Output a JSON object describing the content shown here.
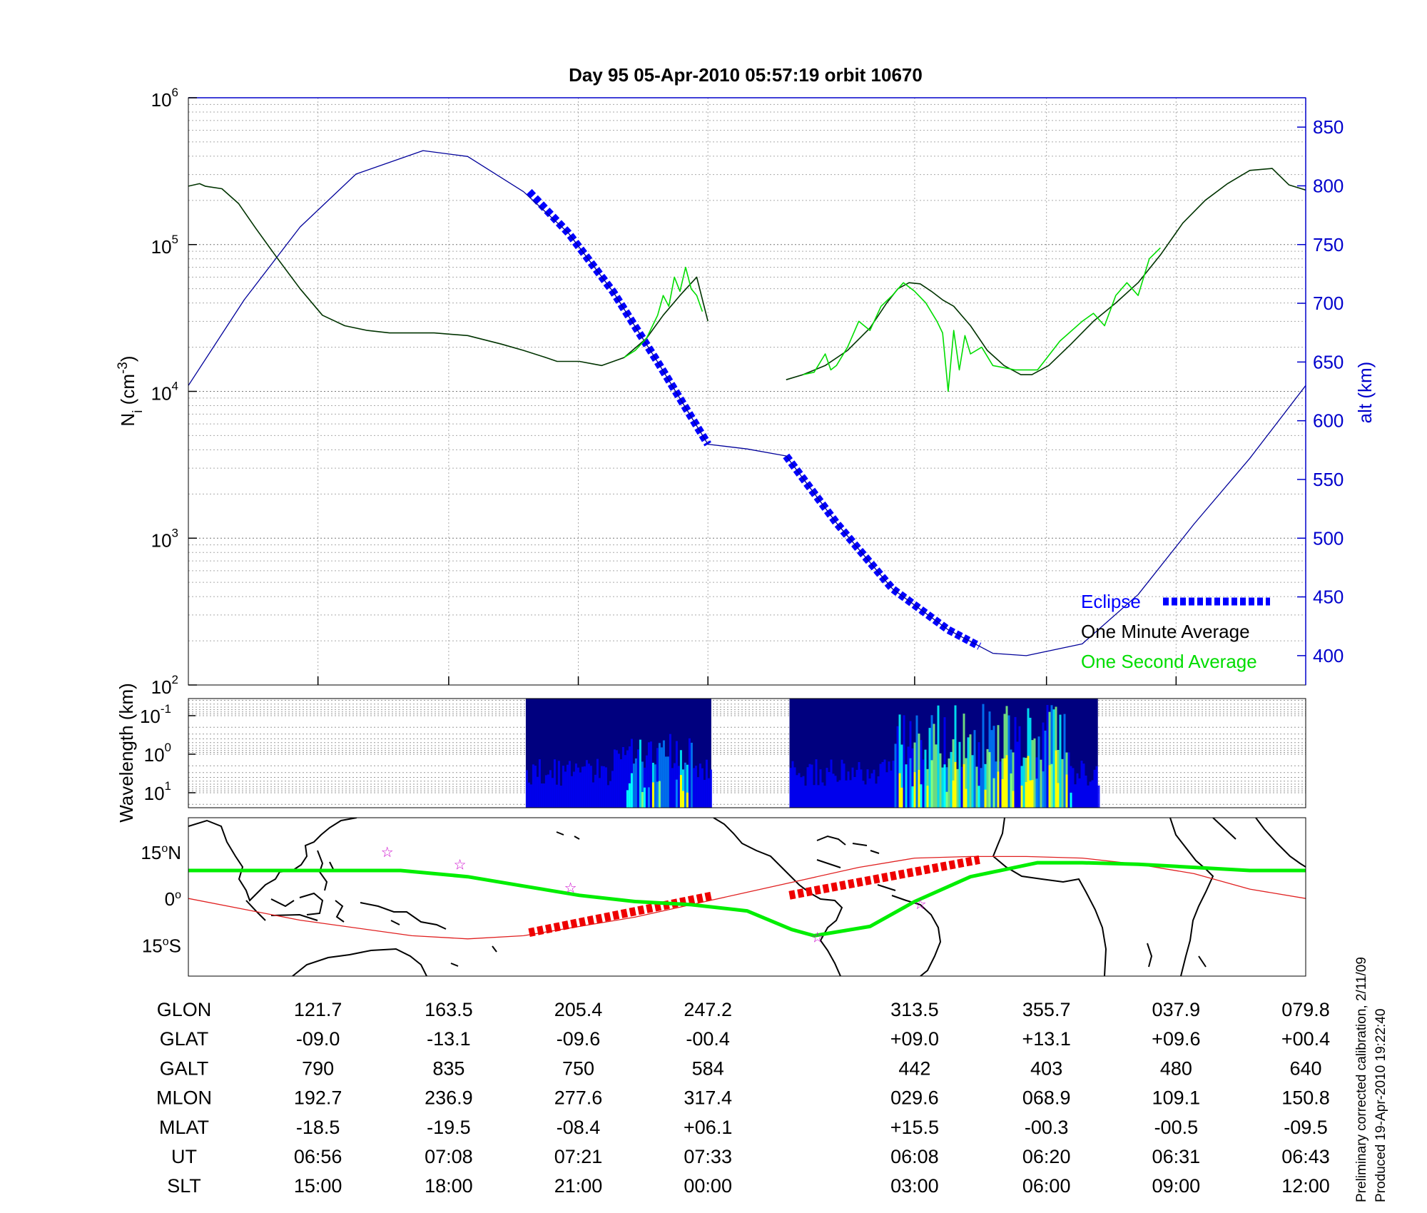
{
  "figure": {
    "title": "Day 95  05-Apr-2010 05:57:19   orbit 10670",
    "note_line1": "Preliminary corrected calibration, 2/11/09",
    "note_line2": "Produced 19-Apr-2010 19:22:40"
  },
  "chart_data": [
    {
      "id": "density_panel",
      "type": "line",
      "ylabel": "Ni (cm-3)",
      "ylabel_parts": {
        "N": "N",
        "sub": "i",
        "unit_open": " (cm",
        "sup": "-3",
        "unit_close": ")"
      },
      "ylabel_right": "alt (km)",
      "y_scale": "log",
      "ylim": [
        100,
        1000000
      ],
      "y_ticks": [
        {
          "main": "10",
          "exp": "2",
          "value": 100
        },
        {
          "main": "10",
          "exp": "3",
          "value": 1000
        },
        {
          "main": "10",
          "exp": "4",
          "value": 10000
        },
        {
          "main": "10",
          "exp": "5",
          "value": 100000
        },
        {
          "main": "10",
          "exp": "6",
          "value": 1000000
        }
      ],
      "y2lim": [
        375,
        875
      ],
      "y2_ticks": [
        "400",
        "450",
        "500",
        "550",
        "600",
        "650",
        "700",
        "750",
        "800",
        "850"
      ],
      "grid": true,
      "x_range": [
        0,
        100
      ],
      "x_tick_positions": [
        11.6,
        23.3,
        34.9,
        46.5,
        65.0,
        76.8,
        88.4
      ],
      "legend": {
        "placement": "bottom-right",
        "entries": [
          {
            "label": "Eclipse",
            "color": "#0000ff",
            "style": "thick-dash"
          },
          {
            "label": "One Minute Average",
            "color": "#000000",
            "style": "none"
          },
          {
            "label": "One Second Average",
            "color": "#00dd00",
            "style": "none"
          }
        ]
      },
      "series": [
        {
          "name": "Eclipse",
          "color": "#0000ff",
          "axis": "right",
          "style": "thick-dash",
          "segments": [
            {
              "x": [
                30.5,
                34,
                38,
                42,
                46.5
              ],
              "y": [
                795,
                760,
                710,
                650,
                580
              ]
            },
            {
              "x": [
                53.5,
                58,
                63,
                68,
                70.8
              ],
              "y": [
                570,
                513,
                457,
                422,
                408
              ]
            }
          ]
        },
        {
          "name": "alt",
          "color": "#00009a",
          "axis": "right",
          "style": "thin",
          "points": {
            "x": [
              0,
              5,
              10,
              15,
              21,
              25,
              30,
              34,
              38,
              42,
              46.5,
              50,
              53.5,
              58,
              63,
              68,
              72,
              75,
              80,
              85,
              90,
              95,
              100
            ],
            "y": [
              630,
              703,
              765,
              810,
              830,
              825,
              795,
              760,
              710,
              650,
              580,
              576,
              570,
              513,
              457,
              422,
              402,
              400,
              410,
              452,
              512,
              568,
              630
            ]
          }
        },
        {
          "name": "One Minute Average",
          "color": "#003300",
          "axis": "left",
          "style": "thin",
          "segments": [
            {
              "x": [
                0,
                1,
                1.5,
                3,
                4.5,
                6,
                8,
                10,
                12,
                14,
                16,
                18,
                20,
                22,
                25,
                28,
                30,
                32,
                33,
                35,
                37,
                39,
                41,
                42.5,
                44,
                45.5,
                46.5
              ],
              "y": [
                250000,
                260000,
                250000,
                240000,
                190000,
                130000,
                80000,
                50000,
                33000,
                28000,
                26000,
                25000,
                25000,
                25000,
                24000,
                21000,
                19000,
                17000,
                16000,
                16000,
                15000,
                17000,
                23000,
                33000,
                45000,
                60000,
                30000
              ]
            },
            {
              "x": [
                53.5,
                55,
                57,
                59,
                61,
                62.5,
                63.5,
                64.5,
                65.5,
                66.5,
                67.5,
                68.5,
                70,
                71.5,
                73,
                74.5,
                75.5,
                77,
                79,
                81,
                83,
                85,
                87,
                89,
                91,
                93,
                95,
                97,
                98.5,
                100
              ],
              "y": [
                12000,
                13000,
                15000,
                19000,
                27000,
                40000,
                50000,
                55000,
                54000,
                48000,
                42000,
                38000,
                28000,
                19000,
                15000,
                13000,
                13000,
                15000,
                21000,
                30000,
                40000,
                55000,
                85000,
                140000,
                200000,
                260000,
                320000,
                330000,
                255000,
                235000
              ]
            }
          ]
        },
        {
          "name": "One Second Average",
          "color": "#00dd00",
          "axis": "left",
          "style": "thin",
          "segments": [
            {
              "x": [
                39,
                40,
                41,
                42,
                42.5,
                43,
                43.5,
                44,
                44.5,
                45,
                45.5,
                46
              ],
              "y": [
                17000,
                19000,
                23000,
                33000,
                45000,
                38000,
                60000,
                48000,
                70000,
                50000,
                45000,
                35000
              ]
            },
            {
              "x": [
                55,
                56,
                57,
                57.5,
                58,
                59,
                60,
                61,
                62,
                63,
                64,
                65,
                66,
                67,
                67.5,
                68,
                68.5,
                69,
                69.5,
                70,
                71,
                72,
                74,
                76,
                78,
                80,
                81,
                82,
                83,
                84,
                85,
                86,
                87
              ],
              "y": [
                13000,
                13500,
                18000,
                14000,
                15000,
                20000,
                30000,
                26000,
                38000,
                45000,
                55000,
                48000,
                40000,
                30000,
                25000,
                10000,
                26000,
                14000,
                24000,
                18000,
                20000,
                15000,
                14000,
                14000,
                22000,
                30000,
                34000,
                28000,
                45000,
                55000,
                45000,
                80000,
                95000
              ]
            }
          ]
        }
      ]
    },
    {
      "id": "spectrogram_panel",
      "type": "heatmap",
      "ylabel": "Wavelength (km)",
      "y_ticks": [
        {
          "main": "10",
          "exp": "-1"
        },
        {
          "main": "10",
          "exp": "0"
        },
        {
          "main": "10",
          "exp": "1"
        }
      ],
      "grid": true,
      "x_range": [
        0,
        100
      ],
      "data_blocks": [
        {
          "x": [
            30.2,
            46.8
          ],
          "active_x": [
            38,
            45
          ],
          "peak_intensity": 0.55
        },
        {
          "x": [
            53.8,
            81.4
          ],
          "active_x": [
            63,
            79
          ],
          "peak_intensity": 1.0
        }
      ],
      "colormap": [
        "#00007f",
        "#0000ff",
        "#0080ff",
        "#00ffff",
        "#80ff80",
        "#ffff00"
      ]
    },
    {
      "id": "map_panel",
      "type": "line",
      "y_ticks": [
        {
          "deg": "15",
          "hemi": "N",
          "value": 15
        },
        {
          "deg": "0",
          "hemi": "",
          "value": 0
        },
        {
          "deg": "15",
          "hemi": "S",
          "value": -15
        }
      ],
      "ylim": [
        -25,
        26
      ],
      "x_range": [
        0,
        100
      ],
      "series": [
        {
          "name": "magnetic equator",
          "color": "#e02020",
          "x": [
            0,
            10,
            20,
            25,
            30,
            35,
            40,
            45,
            50,
            55,
            60,
            65,
            70,
            75,
            80,
            85,
            90,
            95,
            100
          ],
          "y": [
            0,
            -7,
            -12,
            -13,
            -12,
            -9,
            -6,
            -2,
            2,
            6,
            10,
            13,
            13.5,
            13.5,
            13,
            11,
            8,
            3,
            0
          ]
        },
        {
          "name": "Eclipse",
          "color": "#ee0000",
          "style": "thick-dash",
          "segments": [
            {
              "x": [
                30.5,
                46.8
              ],
              "y": [
                -11,
                0.8
              ]
            },
            {
              "x": [
                53.8,
                70.8
              ],
              "y": [
                1,
                12.5
              ]
            }
          ]
        },
        {
          "name": "ground track",
          "color": "#00ee00",
          "x": [
            0,
            10,
            19,
            25,
            30,
            35,
            40,
            45,
            50,
            54,
            56,
            61,
            65,
            70,
            76,
            80,
            85,
            90,
            95,
            100
          ],
          "y": [
            9,
            9,
            9,
            7,
            4,
            1,
            -1,
            -2,
            -4,
            -10,
            -12,
            -9,
            -1,
            7,
            11.5,
            11.5,
            11,
            10,
            9,
            9
          ]
        }
      ],
      "stars_xy": [
        [
          17.8,
          15
        ],
        [
          24.3,
          11
        ],
        [
          34.2,
          3.5
        ],
        [
          56.3,
          -12.5
        ],
        [
          65.5,
          -1.8
        ]
      ]
    }
  ],
  "orbit_table": {
    "columns_x": [
      11.6,
      23.3,
      34.9,
      46.5,
      65.0,
      76.8,
      88.4,
      100.0
    ],
    "rows": [
      {
        "label": "GLON",
        "values": [
          "121.7",
          "163.5",
          "205.4",
          "247.2",
          "313.5",
          "355.7",
          "037.9",
          "079.8"
        ]
      },
      {
        "label": "GLAT",
        "values": [
          "-09.0",
          "-13.1",
          "-09.6",
          "-00.4",
          "+09.0",
          "+13.1",
          "+09.6",
          "+00.4"
        ]
      },
      {
        "label": "GALT",
        "values": [
          "790",
          "835",
          "750",
          "584",
          "442",
          "403",
          "480",
          "640"
        ]
      },
      {
        "label": "MLON",
        "values": [
          "192.7",
          "236.9",
          "277.6",
          "317.4",
          "029.6",
          "068.9",
          "109.1",
          "150.8"
        ]
      },
      {
        "label": "MLAT",
        "values": [
          "-18.5",
          "-19.5",
          "-08.4",
          "+06.1",
          "+15.5",
          "-00.3",
          "-00.5",
          "-09.5"
        ]
      },
      {
        "label": "UT",
        "values": [
          "06:56",
          "07:08",
          "07:21",
          "07:33",
          "06:08",
          "06:20",
          "06:31",
          "06:43"
        ]
      },
      {
        "label": "SLT",
        "values": [
          "15:00",
          "18:00",
          "21:00",
          "00:00",
          "03:00",
          "06:00",
          "09:00",
          "12:00"
        ]
      }
    ]
  }
}
